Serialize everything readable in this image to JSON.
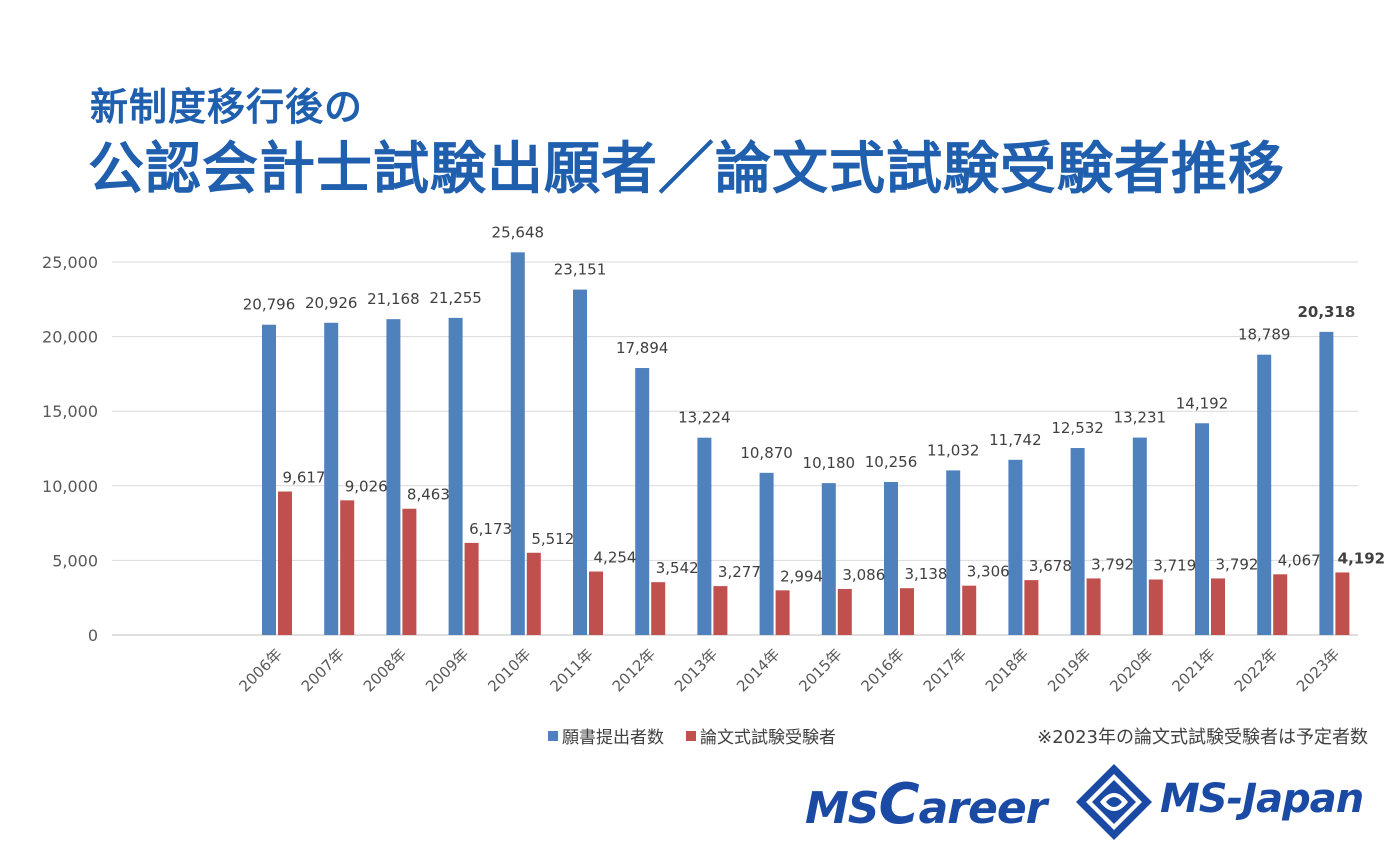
{
  "title": {
    "line1": "新制度移行後の",
    "line2": "公認会計士試験出願者／論文式試験受験者推移"
  },
  "note": "※2023年の論文式試験受験者は予定者数",
  "brand": {
    "left_initial": "MS",
    "left_big": "C",
    "left_rest": "areer",
    "right": "MS-Japan",
    "color": "#1a4aa3"
  },
  "chart_data": {
    "type": "bar",
    "categories": [
      "2006年",
      "2007年",
      "2008年",
      "2009年",
      "2010年",
      "2011年",
      "2012年",
      "2013年",
      "2014年",
      "2015年",
      "2016年",
      "2017年",
      "2018年",
      "2019年",
      "2020年",
      "2021年",
      "2022年",
      "2023年"
    ],
    "series": [
      {
        "name": "願書提出者数",
        "color": "#4f81bd",
        "values": [
          20796,
          20926,
          21168,
          21255,
          25648,
          23151,
          17894,
          13224,
          10870,
          10180,
          10256,
          11032,
          11742,
          12532,
          13231,
          14192,
          18789,
          20318
        ],
        "labels": [
          "20,796",
          "20,926",
          "21,168",
          "21,255",
          "25,648",
          "23,151",
          "17,894",
          "13,224",
          "10,870",
          "10,180",
          "10,256",
          "11,032",
          "11,742",
          "12,532",
          "13,231",
          "14,192",
          "18,789",
          "20,318"
        ]
      },
      {
        "name": "論文式試験受験者",
        "color": "#c0504d",
        "values": [
          9617,
          9026,
          8463,
          6173,
          5512,
          4254,
          3542,
          3277,
          2994,
          3086,
          3138,
          3306,
          3678,
          3792,
          3719,
          3792,
          4067,
          4192
        ],
        "labels": [
          "9,617",
          "9,026",
          "8,463",
          "6,173",
          "5,512",
          "4,254",
          "3,542",
          "3,277",
          "2,994",
          "3,086",
          "3,138",
          "3,306",
          "3,678",
          "3,792",
          "3,719",
          "3,792",
          "4,067",
          "4,192"
        ]
      }
    ],
    "y_ticks": [
      "0",
      "5,000",
      "10,000",
      "15,000",
      "20,000",
      "25,000"
    ],
    "ylim": [
      0,
      25000
    ],
    "bold_last_labels": true,
    "grid": true,
    "legend_position": "bottom"
  }
}
